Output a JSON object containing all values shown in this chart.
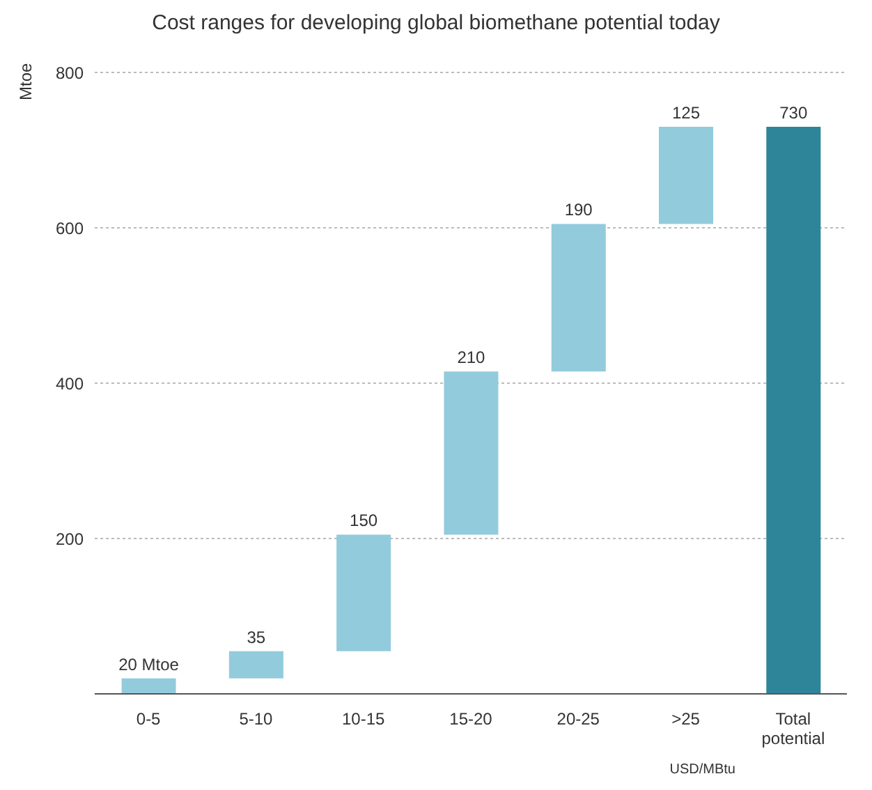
{
  "chart_data": {
    "type": "bar",
    "title": "Cost ranges for developing global biomethane potential today",
    "xlabel": "USD/MBtu",
    "ylabel": "Mtoe",
    "categories": [
      "0-5",
      "5-10",
      "10-15",
      "15-20",
      "20-25",
      ">25",
      "Total potential"
    ],
    "values": [
      20,
      35,
      150,
      210,
      190,
      125,
      730
    ],
    "base": [
      0,
      20,
      55,
      205,
      415,
      605,
      0
    ],
    "colors": [
      "#92cbdc",
      "#92cbdc",
      "#92cbdc",
      "#92cbdc",
      "#92cbdc",
      "#92cbdc",
      "#2e8599"
    ],
    "value_labels": [
      "20 Mtoe",
      "35",
      "150",
      "210",
      "190",
      "125",
      "730"
    ],
    "ylim": [
      0,
      800
    ],
    "yticks": [
      {
        "value": 0,
        "label": null
      },
      200,
      400,
      600,
      800
    ],
    "grid": "y"
  }
}
